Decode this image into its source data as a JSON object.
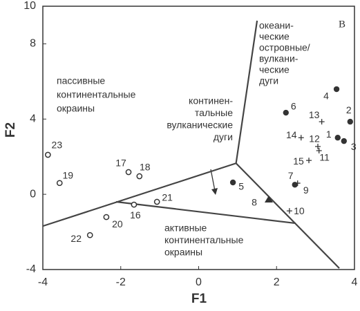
{
  "chart_data": {
    "type": "scatter",
    "corner_label": "В",
    "xlabel": "F1",
    "ylabel": "F2",
    "xlim": [
      -4,
      4
    ],
    "ylim": [
      -4,
      10
    ],
    "xticks": [
      -4,
      -2,
      0,
      2,
      4
    ],
    "yticks": [
      -4,
      0,
      4,
      8,
      10
    ],
    "series": [
      {
        "marker": "open-circle",
        "color": "#333333",
        "labels": [
          "23",
          "19",
          "17",
          "18",
          "16",
          "21",
          "20",
          "22"
        ],
        "x": [
          -3.87,
          -3.57,
          -1.8,
          -1.52,
          -1.66,
          -1.07,
          -2.37,
          -2.79
        ],
        "y": [
          2.1,
          0.6,
          1.18,
          0.96,
          -0.55,
          -0.4,
          -1.21,
          -2.17
        ]
      },
      {
        "marker": "filled-circle",
        "color": "#333333",
        "labels": [
          "5",
          "6",
          "4",
          "2",
          "1",
          "3",
          "9"
        ],
        "x": [
          0.88,
          2.24,
          3.54,
          3.89,
          3.57,
          3.73,
          2.47
        ],
        "y": [
          0.63,
          4.34,
          5.59,
          3.86,
          3.01,
          2.83,
          0.51
        ]
      },
      {
        "marker": "triangle",
        "color": "#333333",
        "labels": [
          "8"
        ],
        "x": [
          1.8
        ],
        "y": [
          -0.29
        ]
      },
      {
        "marker": "plus",
        "color": "#333333",
        "labels": [
          "13",
          "14",
          "12",
          "11",
          "15",
          "7",
          "10"
        ],
        "x": [
          3.16,
          2.63,
          3.06,
          3.09,
          2.83,
          2.54,
          2.33
        ],
        "y": [
          3.86,
          3.01,
          2.54,
          2.32,
          1.8,
          0.59,
          -0.88
        ]
      }
    ],
    "boundaries": [
      {
        "x": [
          -4,
          0.96
        ],
        "y": [
          -1.69,
          1.65
        ]
      },
      {
        "x": [
          0.96,
          1.5
        ],
        "y": [
          1.65,
          9.23
        ]
      },
      {
        "x": [
          0.96,
          3.61
        ],
        "y": [
          1.65,
          -3.93
        ]
      },
      {
        "x": [
          -2.12,
          2.49
        ],
        "y": [
          -0.4,
          -1.54
        ]
      }
    ],
    "regions": [
      {
        "lines": [
          "океани-",
          "ческие",
          "островные/",
          "вулкани-",
          "ческие",
          "дуги"
        ]
      },
      {
        "lines": [
          "пассивные",
          "континентальные",
          "окраины"
        ]
      },
      {
        "lines": [
          "континен-",
          "тальные",
          "вулканические",
          "дуги"
        ]
      },
      {
        "lines": [
          "активные",
          "континентальные",
          "окраины"
        ]
      }
    ]
  }
}
